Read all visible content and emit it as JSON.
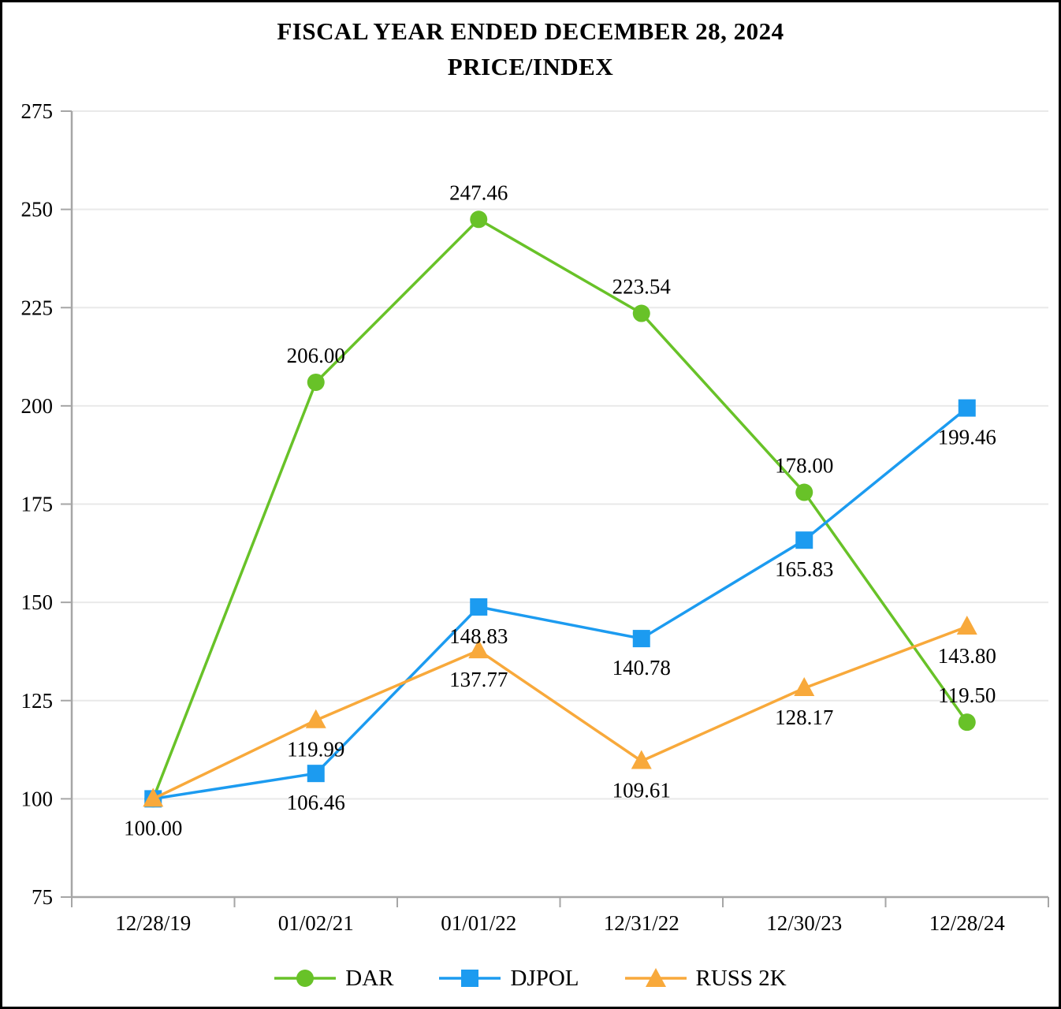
{
  "title": {
    "line1": "FISCAL YEAR ENDED DECEMBER 28, 2024",
    "line2": "PRICE/INDEX"
  },
  "chart_data": {
    "type": "line",
    "x_categories": [
      "12/28/19",
      "01/02/21",
      "01/01/22",
      "12/31/22",
      "12/30/23",
      "12/28/24"
    ],
    "ylim": [
      75,
      275
    ],
    "y_ticks": [
      75,
      100,
      125,
      150,
      175,
      200,
      225,
      250,
      275
    ],
    "grid": "horizontal",
    "legend_position": "bottom",
    "series": [
      {
        "name": "DAR",
        "color": "#68C228",
        "marker": "circle",
        "label_position": "above",
        "values": [
          100.0,
          206.0,
          247.46,
          223.54,
          178.0,
          119.5
        ],
        "data_labels": [
          null,
          "206.00",
          "247.46",
          "223.54",
          "178.00",
          "119.50"
        ]
      },
      {
        "name": "DJPOL",
        "color": "#1C9BF0",
        "marker": "square",
        "label_position": "below",
        "values": [
          100.0,
          106.46,
          148.83,
          140.78,
          165.83,
          199.46
        ],
        "data_labels": [
          null,
          "106.46",
          "148.83",
          "140.78",
          "165.83",
          "199.46"
        ]
      },
      {
        "name": "RUSS 2K",
        "color": "#F8A93B",
        "marker": "triangle",
        "label_position": "below",
        "values": [
          100.0,
          119.99,
          137.77,
          109.61,
          128.17,
          143.8
        ],
        "data_labels": [
          "100.00",
          "119.99",
          "137.77",
          "109.61",
          "128.17",
          "143.80"
        ]
      }
    ],
    "colors": {
      "axis": "#A6A6A6",
      "gridline": "#E9E9E9",
      "text": "#000000",
      "background": "#FFFFFF",
      "border": "#000000"
    }
  }
}
